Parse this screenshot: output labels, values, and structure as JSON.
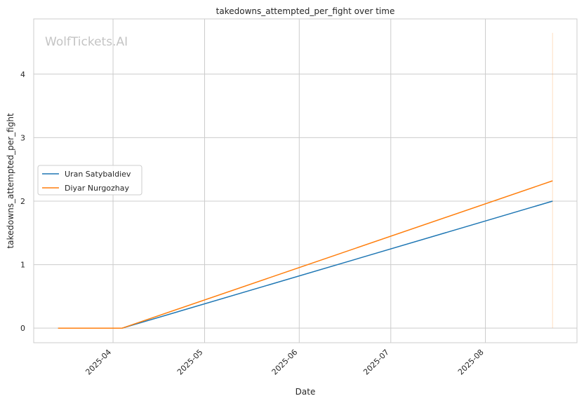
{
  "watermark": "WolfTickets.AI",
  "chart_data": {
    "type": "line",
    "title": "takedowns_attempted_per_fight over time",
    "xlabel": "Date",
    "ylabel": "takedowns_attempted_per_fight",
    "x_ticks": [
      "2025-04-01",
      "2025-05-01",
      "2025-06-01",
      "2025-07-01",
      "2025-08-01"
    ],
    "x_tick_labels": [
      "2025-04",
      "2025-05",
      "2025-06",
      "2025-07",
      "2025-08"
    ],
    "xlim": [
      "2025-03-06",
      "2025-08-31"
    ],
    "y_ticks": [
      0,
      1,
      2,
      3,
      4
    ],
    "ylim": [
      -0.23,
      4.87
    ],
    "grid": true,
    "legend_position": "center-left",
    "series": [
      {
        "name": "Uran Satybaldiev",
        "color": "#1f77b4",
        "x": [
          "2025-03-14",
          "2025-04-04",
          "2025-08-23"
        ],
        "y": [
          0,
          0,
          2.0
        ]
      },
      {
        "name": "Diyar Nurgozhay",
        "color": "#ff7f0e",
        "x": [
          "2025-03-14",
          "2025-04-04",
          "2025-08-23"
        ],
        "y": [
          0,
          0,
          2.32
        ]
      }
    ],
    "reference_line": {
      "x": "2025-08-23",
      "y": [
        0,
        4.65
      ],
      "color": "#ff7f0e",
      "opacity": 0.25
    }
  }
}
